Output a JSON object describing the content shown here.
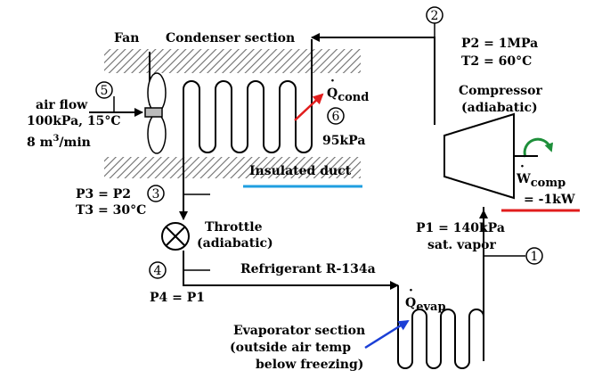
{
  "labels": {
    "fan": "Fan",
    "condenser_section": "Condenser section",
    "p2": "P2 = 1MPa",
    "t2": "T2 = 60°C",
    "compressor": "Compressor",
    "compressor_adiabatic": "(adiabatic)",
    "air_flow": "air flow",
    "air_conditions": "100kPa, 15°C",
    "air_volume": "8 m",
    "air_volume_sup": "3",
    "air_volume_unit": "/min",
    "q_cond": "Q",
    "q_cond_sub": "cond",
    "pressure_95": "95kPa",
    "insulated_duct": "Insulated duct",
    "w_comp": "W",
    "w_comp_sub": "comp",
    "w_comp_value": "= -1kW",
    "p3": "P3 = P2",
    "t3": "T3 = 30°C",
    "throttle": "Throttle",
    "throttle_adiabatic": "(adiabatic)",
    "p1": "P1 = 140kPa",
    "sat_vapor": "sat. vapor",
    "refrigerant": "Refrigerant R-134a",
    "p4": "P4 = P1",
    "q_evap": "Q",
    "q_evap_sub": "evap",
    "evap_section": "Evaporator section",
    "evap_outside": "(outside air temp",
    "evap_below": "below freezing)"
  },
  "state_numbers": [
    "1",
    "2",
    "3",
    "4",
    "5",
    "6"
  ],
  "colors": {
    "hatch": "#6e6e6e",
    "red_arrow": "#e11d1d",
    "blue_arrow": "#1b3fd6",
    "green_arrow": "#1e8f3a",
    "insulated_underline": "#1f9fe0",
    "work_underline": "#e11d1d"
  }
}
